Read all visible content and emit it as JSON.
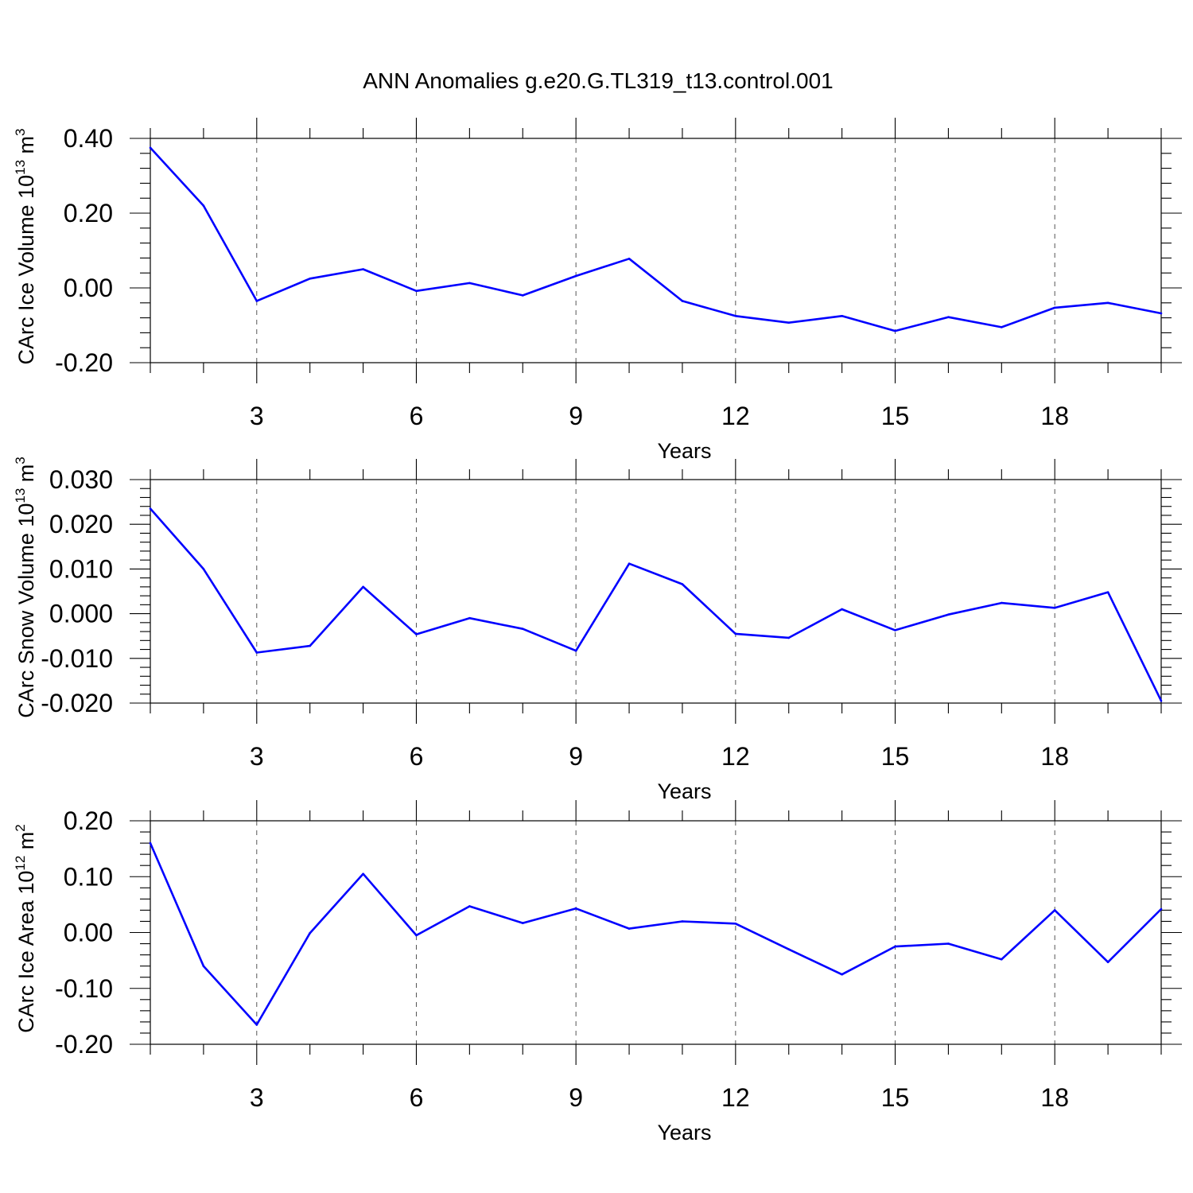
{
  "title": "ANN Anomalies g.e20.G.TL319_t13.control.001",
  "colors": {
    "line": "#0000ff"
  },
  "chart_data": [
    {
      "type": "line",
      "xlabel": "Years",
      "ylabel": {
        "text": "CArc Ice Volume 10",
        "sup": "13",
        "unit": " m",
        "unit_sup": "3"
      },
      "xlim": [
        1,
        20
      ],
      "xticks": [
        3,
        6,
        9,
        12,
        15,
        18
      ],
      "ylim": [
        -0.2,
        0.4
      ],
      "yticks": [
        -0.2,
        0.0,
        0.2,
        0.4
      ],
      "ytick_labels": [
        "-0.20",
        "0.00",
        "0.20",
        "0.40"
      ],
      "grid": "vertical dashed at major x ticks",
      "x": [
        1,
        2,
        3,
        4,
        5,
        6,
        7,
        8,
        9,
        10,
        11,
        12,
        13,
        14,
        15,
        16,
        17,
        18,
        19,
        20
      ],
      "values": [
        0.375,
        0.22,
        -0.035,
        0.025,
        0.05,
        -0.008,
        0.013,
        -0.02,
        0.032,
        0.078,
        -0.035,
        -0.075,
        -0.093,
        -0.075,
        -0.115,
        -0.078,
        -0.105,
        -0.053,
        -0.04,
        -0.068
      ]
    },
    {
      "type": "line",
      "xlabel": "Years",
      "ylabel": {
        "text": "CArc Snow Volume 10",
        "sup": "13",
        "unit": " m",
        "unit_sup": "3"
      },
      "xlim": [
        1,
        20
      ],
      "xticks": [
        3,
        6,
        9,
        12,
        15,
        18
      ],
      "ylim": [
        -0.02,
        0.03
      ],
      "yticks": [
        -0.02,
        -0.01,
        0.0,
        0.01,
        0.02,
        0.03
      ],
      "ytick_labels": [
        "-0.020",
        "-0.010",
        "0.000",
        "0.010",
        "0.020",
        "0.030"
      ],
      "grid": "vertical dashed at major x ticks",
      "x": [
        1,
        2,
        3,
        4,
        5,
        6,
        7,
        8,
        9,
        10,
        11,
        12,
        13,
        14,
        15,
        16,
        17,
        18,
        19,
        20
      ],
      "values": [
        0.0235,
        0.01,
        -0.0087,
        -0.0072,
        0.006,
        -0.0046,
        -0.001,
        -0.0034,
        -0.0083,
        0.0112,
        0.0066,
        -0.0045,
        -0.0054,
        0.001,
        -0.0037,
        -0.0002,
        0.0024,
        0.0013,
        0.0048,
        -0.0195
      ]
    },
    {
      "type": "line",
      "xlabel": "Years",
      "ylabel": {
        "text": "CArc Ice Area 10",
        "sup": "12",
        "unit": " m",
        "unit_sup": "2"
      },
      "xlim": [
        1,
        20
      ],
      "xticks": [
        3,
        6,
        9,
        12,
        15,
        18
      ],
      "ylim": [
        -0.2,
        0.2
      ],
      "yticks": [
        -0.2,
        -0.1,
        0.0,
        0.1,
        0.2
      ],
      "ytick_labels": [
        "-0.20",
        "-0.10",
        "0.00",
        "0.10",
        "0.20"
      ],
      "grid": "vertical dashed at major x ticks",
      "x": [
        1,
        2,
        3,
        4,
        5,
        6,
        7,
        8,
        9,
        10,
        11,
        12,
        13,
        14,
        15,
        16,
        17,
        18,
        19,
        20
      ],
      "values": [
        0.16,
        -0.06,
        -0.165,
        -0.001,
        0.105,
        -0.005,
        0.047,
        0.017,
        0.043,
        0.007,
        0.02,
        0.016,
        -0.03,
        -0.075,
        -0.025,
        -0.02,
        -0.048,
        0.04,
        -0.053,
        0.042
      ]
    }
  ]
}
